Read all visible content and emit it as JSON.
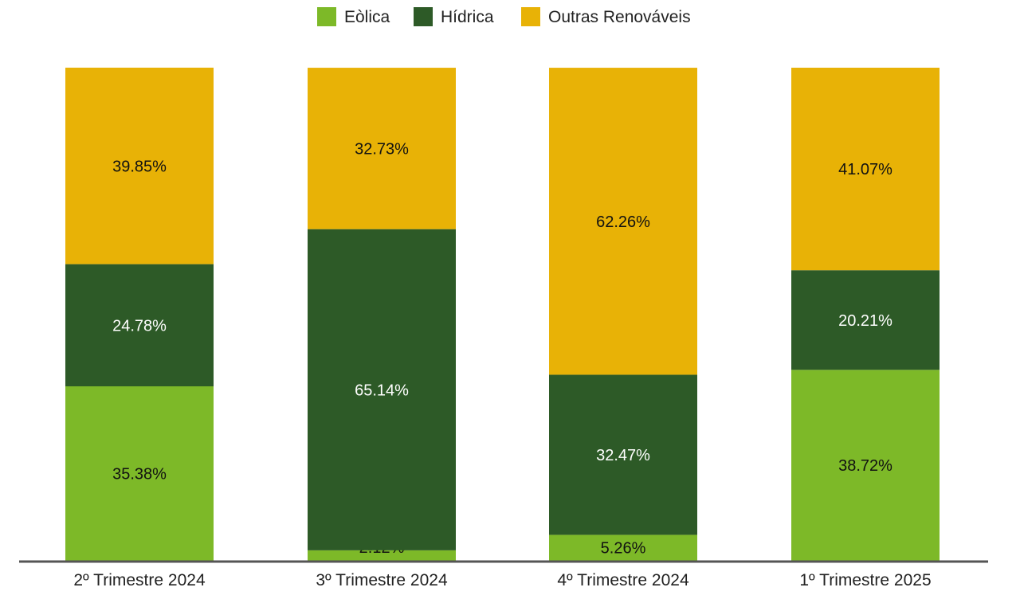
{
  "chart_data": {
    "type": "bar",
    "stacked": true,
    "categories": [
      "2º Trimestre 2024",
      "3º Trimestre 2024",
      "4º Trimestre 2024",
      "1º Trimestre 2025"
    ],
    "series": [
      {
        "name": "Eòlica",
        "color": "#7db928",
        "values": [
          35.38,
          2.12,
          5.26,
          38.72
        ],
        "labels": [
          "35.38%",
          "2.12%",
          "5.26%",
          "38.72%"
        ]
      },
      {
        "name": "Hídrica",
        "color": "#2d5a27",
        "values": [
          24.78,
          65.14,
          32.47,
          20.21
        ],
        "labels": [
          "24.78%",
          "65.14%",
          "32.47%",
          "20.21%"
        ]
      },
      {
        "name": "Outras Renováveis",
        "color": "#e8b206",
        "values": [
          39.85,
          32.73,
          62.26,
          41.07
        ],
        "labels": [
          "39.85%",
          "32.73%",
          "62.26%",
          "41.07%"
        ]
      }
    ],
    "ylim": [
      0,
      100
    ],
    "legend_position": "top",
    "grid": false,
    "title": "",
    "xlabel": "",
    "ylabel": ""
  }
}
